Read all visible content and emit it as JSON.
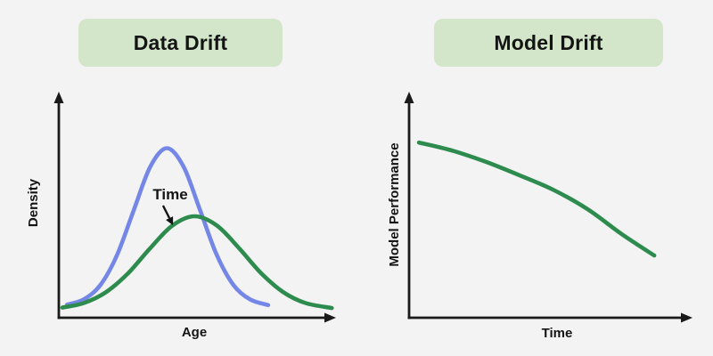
{
  "colors": {
    "background": "#f3f3f4",
    "badge_bg": "#d4e6c9",
    "badge_text": "#141414",
    "axis": "#1a1a1a",
    "blue": "#7587e6",
    "green": "#2e8b4e"
  },
  "panels": {
    "left": {
      "badge": "Data Drift",
      "xlabel": "Age",
      "ylabel": "Density"
    },
    "right": {
      "badge": "Model Drift",
      "xlabel": "Time",
      "ylabel": "Model Performance"
    }
  },
  "chart_data": [
    {
      "type": "line",
      "title": "Data Drift",
      "xlabel": "Age",
      "ylabel": "Density",
      "axes_numeric": false,
      "grid": false,
      "legend": "none",
      "series": [
        {
          "name": "original distribution",
          "color_key": "blue",
          "points": [
            [
              0.03,
              0.058
            ],
            [
              0.09,
              0.081
            ],
            [
              0.15,
              0.145
            ],
            [
              0.21,
              0.277
            ],
            [
              0.27,
              0.475
            ],
            [
              0.33,
              0.668
            ],
            [
              0.39,
              0.75
            ],
            [
              0.45,
              0.668
            ],
            [
              0.51,
              0.475
            ],
            [
              0.57,
              0.277
            ],
            [
              0.63,
              0.145
            ],
            [
              0.69,
              0.081
            ],
            [
              0.755,
              0.056
            ]
          ]
        },
        {
          "name": "drifted distribution",
          "color_key": "green",
          "points": [
            [
              0.013,
              0.045
            ],
            [
              0.09,
              0.065
            ],
            [
              0.17,
              0.113
            ],
            [
              0.25,
              0.197
            ],
            [
              0.33,
              0.308
            ],
            [
              0.41,
              0.408
            ],
            [
              0.49,
              0.449
            ],
            [
              0.57,
              0.408
            ],
            [
              0.65,
              0.308
            ],
            [
              0.73,
              0.197
            ],
            [
              0.81,
              0.113
            ],
            [
              0.89,
              0.065
            ],
            [
              0.985,
              0.043
            ]
          ]
        }
      ],
      "annotation": {
        "text": "Time",
        "text_xy": [
          0.402,
          0.523
        ],
        "arrow_from": [
          0.376,
          0.496
        ],
        "arrow_to": [
          0.412,
          0.409
        ]
      }
    },
    {
      "type": "line",
      "title": "Model Drift",
      "xlabel": "Time",
      "ylabel": "Model Performance",
      "axes_numeric": false,
      "grid": false,
      "legend": "none",
      "series": [
        {
          "name": "model performance",
          "color_key": "green",
          "points": [
            [
              0.035,
              0.775
            ],
            [
              0.15,
              0.74
            ],
            [
              0.27,
              0.69
            ],
            [
              0.39,
              0.63
            ],
            [
              0.51,
              0.565
            ],
            [
              0.63,
              0.48
            ],
            [
              0.75,
              0.37
            ],
            [
              0.865,
              0.275
            ]
          ]
        }
      ]
    }
  ]
}
